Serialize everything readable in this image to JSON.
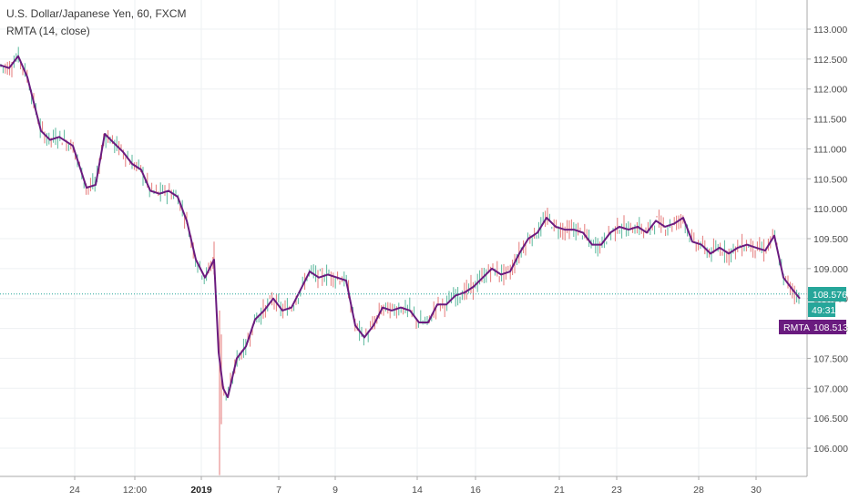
{
  "legend": {
    "symbol_line": "U.S. Dollar/Japanese Yen, 60, FXCM",
    "indicator_line": "RMTA (14, close)"
  },
  "price_axis": {
    "ticks": [
      "113.000",
      "112.500",
      "112.000",
      "111.500",
      "111.000",
      "110.500",
      "110.000",
      "109.500",
      "109.000",
      "108.500",
      "108.000",
      "107.500",
      "107.000",
      "106.500",
      "106.000"
    ]
  },
  "time_axis": {
    "ticks": [
      "24",
      "12:00",
      "2019",
      "7",
      "9",
      "14",
      "16",
      "21",
      "23",
      "28",
      "30"
    ]
  },
  "tags": {
    "price_value": "108.576",
    "countdown": "49:31",
    "indicator_name": "RMTA",
    "indicator_value": "108.513"
  },
  "colors": {
    "up_candle": "#5bb89c",
    "down_candle": "#e57a7a",
    "indicator_line": "#6a1b7f",
    "last_price": "#26a69a",
    "indicator_tag": "#6a1b7f",
    "grid": "#eef0f3",
    "axis": "#a9a9a9"
  },
  "chart_data": {
    "type": "line",
    "title": "U.S. Dollar/Japanese Yen, 60, FXCM",
    "ylim": [
      105.55,
      113.35
    ],
    "x": [
      0,
      10,
      20,
      30,
      40,
      45,
      55,
      65,
      80,
      95,
      105,
      115,
      125,
      135,
      145,
      155,
      165,
      175,
      185,
      195,
      205,
      215,
      225,
      235,
      240,
      245,
      250,
      260,
      270,
      280,
      290,
      300,
      310,
      320,
      330,
      340,
      350,
      360,
      370,
      380,
      390,
      400,
      410,
      420,
      430,
      440,
      450,
      460,
      470,
      480,
      490,
      500,
      510,
      520,
      530,
      540,
      550,
      560,
      570,
      580,
      590,
      600,
      610,
      620,
      630,
      640,
      650,
      660,
      670,
      680,
      690,
      700,
      710,
      720,
      730,
      740,
      750,
      760,
      770,
      780,
      790,
      800,
      810,
      820,
      830,
      840,
      850,
      860,
      870,
      878
    ],
    "series": [
      {
        "name": "RMTA",
        "values": [
          112.4,
          112.35,
          112.55,
          112.2,
          111.6,
          111.3,
          111.15,
          111.2,
          111.05,
          110.35,
          110.4,
          111.25,
          111.1,
          110.95,
          110.75,
          110.65,
          110.3,
          110.25,
          110.3,
          110.2,
          109.8,
          109.15,
          108.85,
          109.15,
          107.6,
          107.0,
          106.85,
          107.5,
          107.7,
          108.15,
          108.3,
          108.5,
          108.3,
          108.35,
          108.65,
          108.95,
          108.85,
          108.9,
          108.85,
          108.8,
          108.05,
          107.85,
          108.05,
          108.35,
          108.3,
          108.35,
          108.3,
          108.1,
          108.1,
          108.4,
          108.4,
          108.55,
          108.6,
          108.7,
          108.85,
          109.0,
          108.9,
          108.95,
          109.25,
          109.5,
          109.6,
          109.85,
          109.7,
          109.65,
          109.65,
          109.6,
          109.4,
          109.4,
          109.6,
          109.7,
          109.65,
          109.7,
          109.6,
          109.8,
          109.7,
          109.75,
          109.85,
          109.45,
          109.4,
          109.25,
          109.35,
          109.25,
          109.35,
          109.4,
          109.35,
          109.3,
          109.55,
          108.85,
          108.65,
          108.5
        ]
      }
    ],
    "last_price": 108.576
  }
}
